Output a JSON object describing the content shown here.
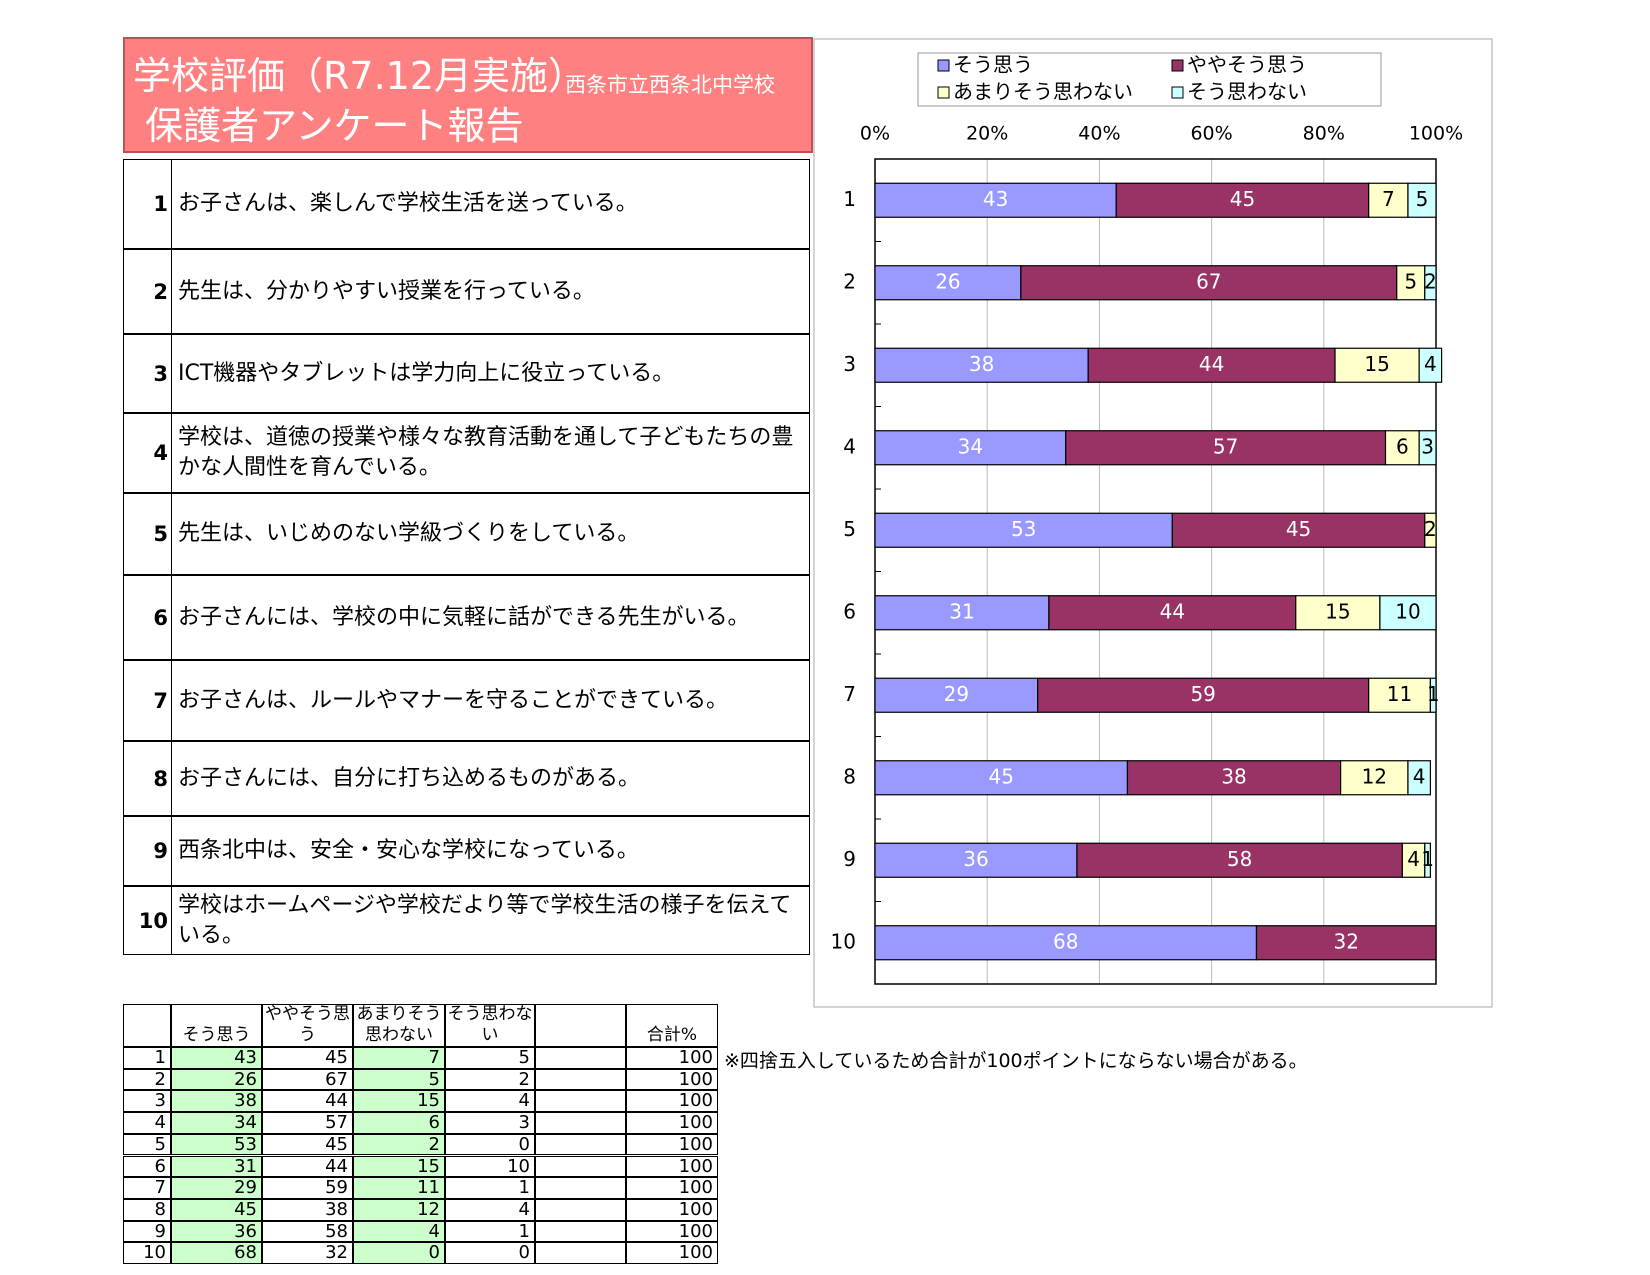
{
  "header": {
    "title": "学校評価（R7.12月実施）",
    "school": "西条市立西条北中学校",
    "subtitle": "保護者アンケート報告"
  },
  "questions": [
    {
      "no": "1",
      "text": "お子さんは、楽しんで学校生活を送っている。"
    },
    {
      "no": "2",
      "text": "先生は、分かりやすい授業を行っている。"
    },
    {
      "no": "3",
      "text": "ICT機器やタブレットは学力向上に役立っている。"
    },
    {
      "no": "4",
      "text": "学校は、道徳の授業や様々な教育活動を通して子どもたちの豊かな人間性を育んでいる。"
    },
    {
      "no": "5",
      "text": "先生は、いじめのない学級づくりをしている。"
    },
    {
      "no": "6",
      "text": "お子さんには、学校の中に気軽に話ができる先生がいる。"
    },
    {
      "no": "7",
      "text": "お子さんは、ルールやマナーを守ることができている。"
    },
    {
      "no": "8",
      "text": "お子さんには、自分に打ち込めるものがある。"
    },
    {
      "no": "9",
      "text": "西条北中は、安全・安心な学校になっている。"
    },
    {
      "no": "10",
      "text": "学校はホームページや学校だより等で学校生活の様子を伝えている。"
    }
  ],
  "chart_data": {
    "type": "stacked-bar-horizontal",
    "categories": [
      "1",
      "2",
      "3",
      "4",
      "5",
      "6",
      "7",
      "8",
      "9",
      "10"
    ],
    "series": [
      {
        "name": "そう思う",
        "color": "#9999ff",
        "values": [
          43,
          26,
          38,
          34,
          53,
          31,
          29,
          45,
          36,
          68
        ]
      },
      {
        "name": "ややそう思う",
        "color": "#993366",
        "values": [
          45,
          67,
          44,
          57,
          45,
          44,
          59,
          38,
          58,
          32
        ]
      },
      {
        "name": "あまりそう思わない",
        "color": "#ffffcc",
        "values": [
          7,
          5,
          15,
          6,
          2,
          15,
          11,
          12,
          4,
          0
        ]
      },
      {
        "name": "そう思わない",
        "color": "#ccffff",
        "values": [
          5,
          2,
          4,
          3,
          0,
          10,
          1,
          4,
          1,
          0
        ]
      }
    ],
    "xlim": [
      0,
      100
    ],
    "xticks": [
      {
        "value": 0,
        "label": "0%"
      },
      {
        "value": 20,
        "label": "20%"
      },
      {
        "value": 40,
        "label": "40%"
      },
      {
        "value": 60,
        "label": "60%"
      },
      {
        "value": 80,
        "label": "80%"
      },
      {
        "value": 100,
        "label": "100%"
      }
    ],
    "grid": true,
    "legend": "top"
  },
  "table": {
    "headers": [
      "そう思う",
      "ややそう思う",
      "あまりそう思わない",
      "そう思わない"
    ],
    "total_header": "合計%",
    "totals": [
      100,
      100,
      100,
      100,
      100,
      100,
      100,
      100,
      100,
      100
    ],
    "note": "※四捨五入しているため合計が100ポイントにならない場合がある。"
  }
}
